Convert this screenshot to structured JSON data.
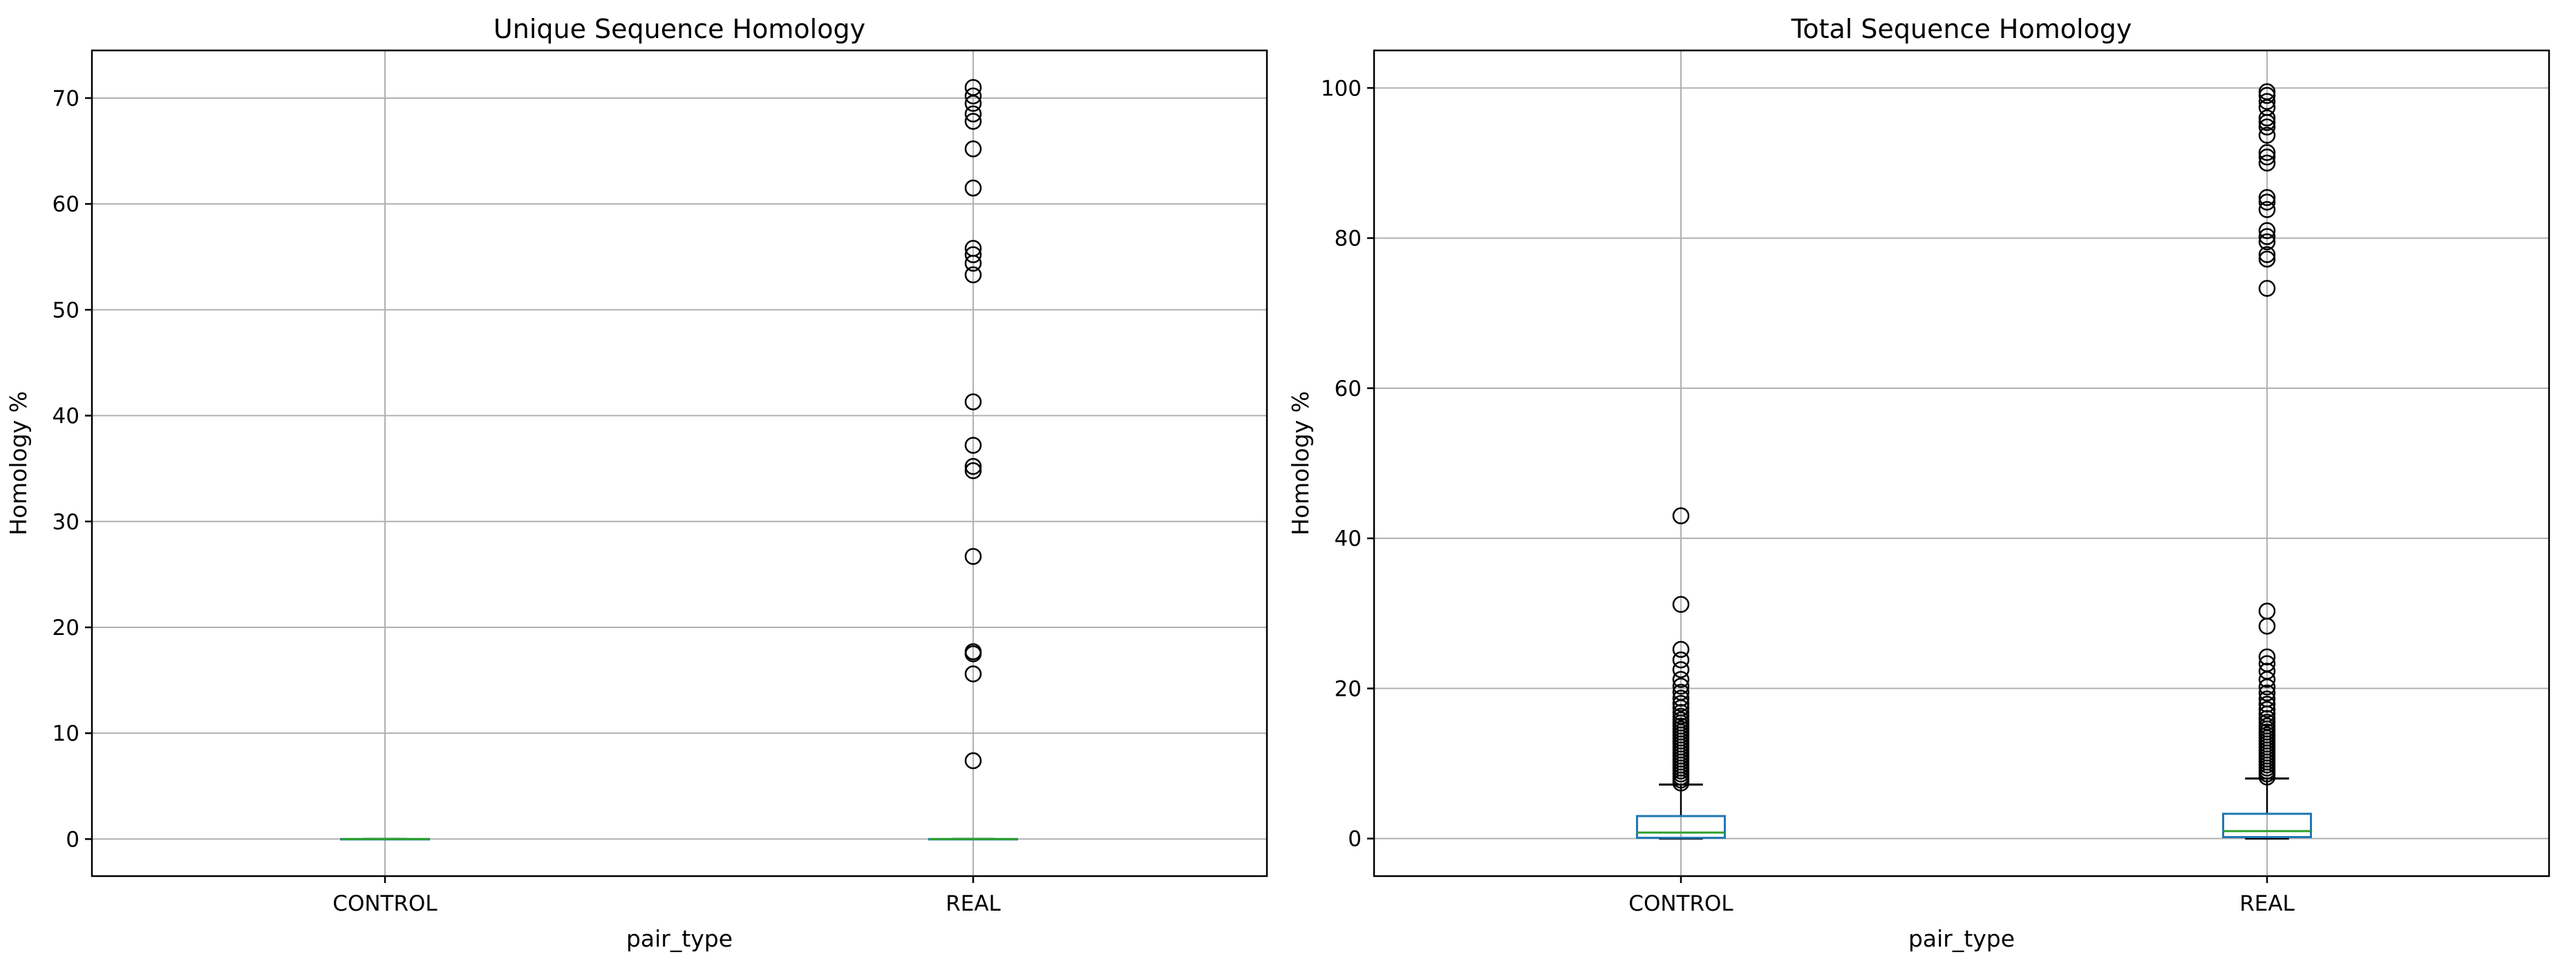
{
  "chart_data": [
    {
      "type": "box",
      "title": "Unique Sequence Homology",
      "xlabel": "pair_type",
      "ylabel": "Homology %",
      "categories": [
        "CONTROL",
        "REAL"
      ],
      "ylim": [
        -3.5,
        74.5
      ],
      "yticks": [
        0,
        10,
        20,
        30,
        40,
        50,
        60,
        70
      ],
      "grid": true,
      "box_color": "#1f77b4",
      "median_color": "#2ca02c",
      "flier_color": "#000000",
      "boxes": [
        {
          "category": "CONTROL",
          "q1": 0,
          "median": 0,
          "q3": 0,
          "whisker_low": 0,
          "whisker_high": 0,
          "fliers": []
        },
        {
          "category": "REAL",
          "q1": 0,
          "median": 0,
          "q3": 0,
          "whisker_low": 0,
          "whisker_high": 0,
          "fliers": [
            7.4,
            15.6,
            17.5,
            17.7,
            26.7,
            34.8,
            35.2,
            37.2,
            41.3,
            53.3,
            54.4,
            55.2,
            55.8,
            61.5,
            65.2,
            67.8,
            68.5,
            69.5,
            70.2,
            71.0
          ]
        }
      ]
    },
    {
      "type": "box",
      "title": "Total Sequence Homology",
      "xlabel": "pair_type",
      "ylabel": "Homology %",
      "categories": [
        "CONTROL",
        "REAL"
      ],
      "ylim": [
        -5,
        105
      ],
      "yticks": [
        0,
        20,
        40,
        60,
        80,
        100
      ],
      "grid": true,
      "box_color": "#1f77b4",
      "median_color": "#2ca02c",
      "flier_color": "#000000",
      "boxes": [
        {
          "category": "CONTROL",
          "q1": 0.1,
          "median": 0.8,
          "q3": 3.0,
          "whisker_low": 0,
          "whisker_high": 7.2,
          "fliers": [
            7.4,
            7.8,
            8.2,
            8.6,
            9.0,
            9.4,
            9.8,
            10.2,
            10.6,
            11.0,
            11.4,
            11.8,
            12.2,
            12.6,
            13.0,
            13.4,
            13.8,
            14.2,
            14.6,
            15.0,
            15.4,
            15.8,
            16.3,
            16.8,
            17.4,
            18.0,
            18.7,
            19.5,
            20.3,
            21.2,
            22.5,
            23.8,
            25.2,
            31.2,
            43.0
          ]
        },
        {
          "category": "REAL",
          "q1": 0.2,
          "median": 1.0,
          "q3": 3.3,
          "whisker_low": 0,
          "whisker_high": 8.0,
          "fliers": [
            8.2,
            8.6,
            9.0,
            9.4,
            9.8,
            10.2,
            10.6,
            11.0,
            11.4,
            11.8,
            12.2,
            12.6,
            13.0,
            13.4,
            13.8,
            14.2,
            14.6,
            15.0,
            15.5,
            16.0,
            16.6,
            17.2,
            17.9,
            18.6,
            19.4,
            20.2,
            21.2,
            22.3,
            23.3,
            24.2,
            28.3,
            30.3,
            73.3,
            77.2,
            77.8,
            79.5,
            80.2,
            81.0,
            83.8,
            84.8,
            85.4,
            90.0,
            90.8,
            91.4,
            93.7,
            94.8,
            95.4,
            96.0,
            97.4,
            98.2,
            99.0,
            99.5
          ]
        }
      ]
    }
  ]
}
